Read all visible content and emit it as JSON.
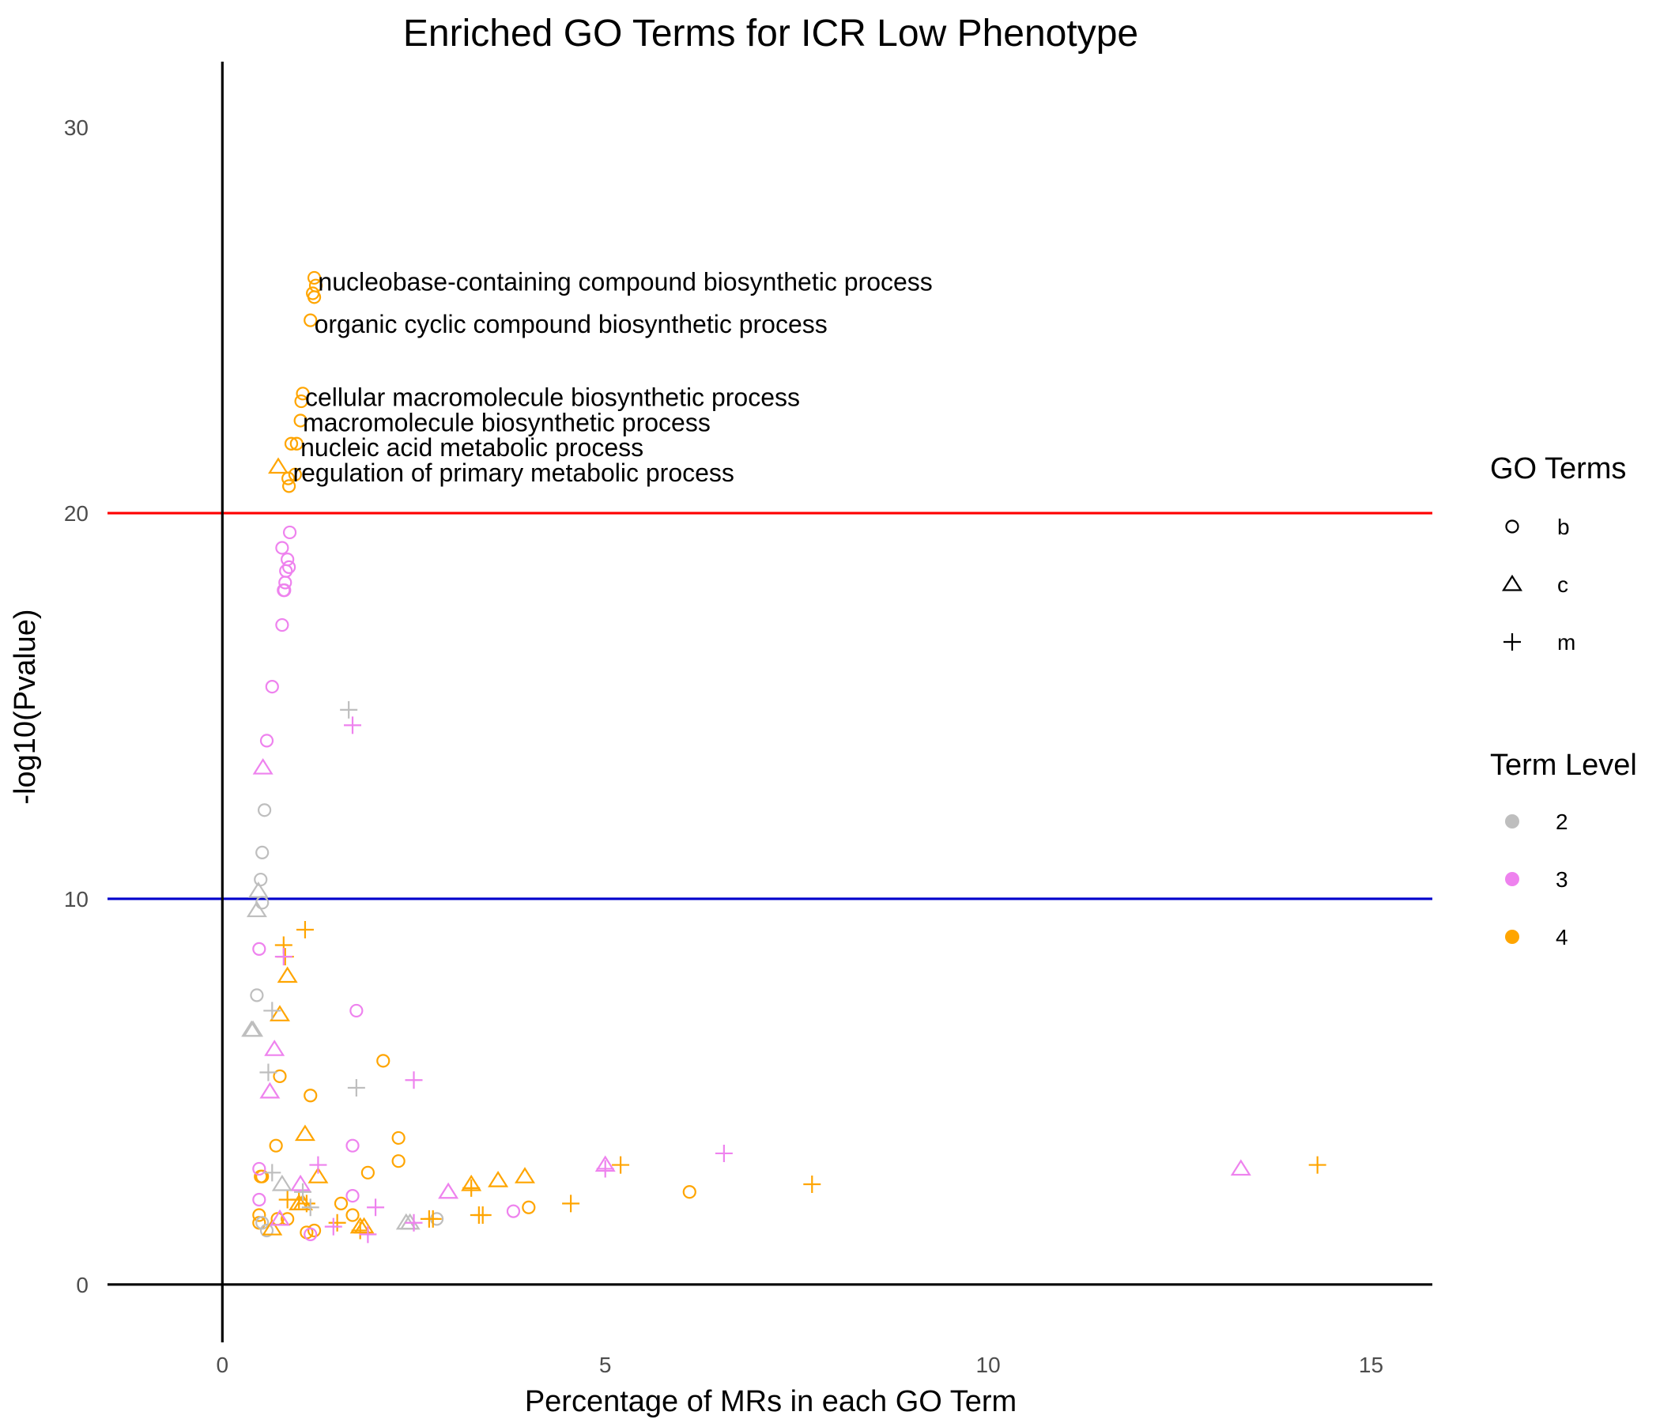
{
  "chart_data": {
    "type": "scatter",
    "title": "Enriched GO Terms for ICR Low Phenotype",
    "xlabel": "Percentage of MRs in each GO Term",
    "ylabel": "-log10(Pvalue)",
    "xlim": [
      -1.5,
      15.8
    ],
    "ylim": [
      -1.5,
      31.5
    ],
    "x_ticks": [
      0,
      5,
      10,
      15
    ],
    "y_ticks": [
      0,
      10,
      20,
      30
    ],
    "grid": false,
    "reference_lines": [
      {
        "axis": "y",
        "value": 20,
        "color": "#ff0000"
      },
      {
        "axis": "y",
        "value": 10,
        "color": "#0000cc"
      },
      {
        "axis": "y",
        "value": 0,
        "color": "#000000"
      },
      {
        "axis": "x",
        "value": 0,
        "color": "#000000"
      }
    ],
    "legend": {
      "placement": "right",
      "shape_title": "GO Terms",
      "shape_entries": [
        {
          "label": "b",
          "shape": "circle"
        },
        {
          "label": "c",
          "shape": "triangle"
        },
        {
          "label": "m",
          "shape": "plus"
        }
      ],
      "color_title": "Term Level",
      "color_entries": [
        {
          "label": "2",
          "color": "#bebebe"
        },
        {
          "label": "3",
          "color": "#ee82ee"
        },
        {
          "label": "4",
          "color": "#ffa500"
        }
      ]
    },
    "annotations": [
      {
        "text": "nucleobase-containing compound biosynthetic process",
        "x": 1.25,
        "y": 26.0
      },
      {
        "text": "organic cyclic compound biosynthetic process",
        "x": 1.2,
        "y": 24.9
      },
      {
        "text": "cellular macromolecule biosynthetic process",
        "x": 1.08,
        "y": 23.0
      },
      {
        "text": "macromolecule biosynthetic process",
        "x": 1.05,
        "y": 22.35
      },
      {
        "text": "nucleic acid metabolic process",
        "x": 1.02,
        "y": 21.7
      },
      {
        "text": "regulation of primary metabolic process",
        "x": 0.92,
        "y": 21.05
      }
    ],
    "series": [
      {
        "name": "b",
        "shape": "circle",
        "level": 4,
        "points": [
          [
            1.2,
            26.1
          ],
          [
            1.22,
            25.9
          ],
          [
            1.18,
            25.7
          ],
          [
            1.2,
            25.6
          ],
          [
            1.15,
            25.0
          ],
          [
            1.05,
            23.1
          ],
          [
            1.03,
            22.9
          ],
          [
            1.02,
            22.4
          ],
          [
            0.9,
            21.8
          ],
          [
            0.97,
            21.8
          ],
          [
            0.95,
            21.0
          ],
          [
            0.86,
            20.9
          ],
          [
            0.87,
            20.7
          ],
          [
            0.75,
            5.4
          ],
          [
            1.15,
            4.9
          ],
          [
            2.1,
            5.8
          ],
          [
            2.3,
            3.8
          ],
          [
            2.3,
            3.2
          ],
          [
            1.9,
            2.9
          ],
          [
            0.7,
            3.6
          ],
          [
            0.5,
            2.8
          ],
          [
            0.52,
            2.8
          ],
          [
            0.48,
            1.8
          ],
          [
            0.48,
            1.6
          ],
          [
            0.72,
            1.7
          ],
          [
            0.85,
            1.7
          ],
          [
            1.55,
            2.1
          ],
          [
            1.7,
            1.8
          ],
          [
            1.1,
            1.35
          ],
          [
            1.2,
            1.4
          ],
          [
            4.0,
            2.0
          ],
          [
            6.1,
            2.4
          ]
        ]
      },
      {
        "name": "b",
        "shape": "circle",
        "level": 3,
        "points": [
          [
            0.88,
            19.5
          ],
          [
            0.78,
            19.1
          ],
          [
            0.85,
            18.8
          ],
          [
            0.87,
            18.6
          ],
          [
            0.83,
            18.5
          ],
          [
            0.82,
            18.2
          ],
          [
            0.81,
            18.0
          ],
          [
            0.8,
            18.0
          ],
          [
            0.78,
            17.1
          ],
          [
            0.65,
            15.5
          ],
          [
            0.58,
            14.1
          ],
          [
            0.48,
            8.7
          ],
          [
            0.48,
            3.0
          ],
          [
            0.48,
            2.2
          ],
          [
            1.75,
            7.1
          ],
          [
            1.7,
            3.6
          ],
          [
            1.7,
            2.3
          ],
          [
            3.8,
            1.9
          ],
          [
            1.15,
            1.3
          ]
        ]
      },
      {
        "name": "b",
        "shape": "circle",
        "level": 2,
        "points": [
          [
            0.55,
            12.3
          ],
          [
            0.52,
            11.2
          ],
          [
            0.5,
            10.5
          ],
          [
            0.52,
            9.9
          ],
          [
            0.45,
            7.5
          ],
          [
            0.52,
            1.6
          ],
          [
            0.58,
            1.4
          ],
          [
            2.8,
            1.7
          ]
        ]
      },
      {
        "name": "c",
        "shape": "triangle",
        "level": 4,
        "points": [
          [
            0.73,
            21.2
          ],
          [
            0.85,
            8.0
          ],
          [
            0.75,
            7.0
          ],
          [
            1.08,
            3.9
          ],
          [
            1.25,
            2.8
          ],
          [
            3.25,
            2.6
          ],
          [
            3.6,
            2.7
          ],
          [
            3.95,
            2.8
          ],
          [
            1.0,
            2.1
          ],
          [
            1.05,
            2.1
          ],
          [
            0.65,
            1.45
          ],
          [
            1.8,
            1.5
          ],
          [
            1.85,
            1.5
          ]
        ]
      },
      {
        "name": "c",
        "shape": "triangle",
        "level": 3,
        "points": [
          [
            0.53,
            13.4
          ],
          [
            0.68,
            6.1
          ],
          [
            0.62,
            5.0
          ],
          [
            1.02,
            2.6
          ],
          [
            0.75,
            1.7
          ],
          [
            2.95,
            2.4
          ],
          [
            5.0,
            3.1
          ],
          [
            13.3,
            3.0
          ]
        ]
      },
      {
        "name": "c",
        "shape": "triangle",
        "level": 2,
        "points": [
          [
            0.47,
            10.2
          ],
          [
            0.45,
            9.7
          ],
          [
            0.38,
            6.6
          ],
          [
            0.4,
            6.6
          ],
          [
            0.78,
            2.6
          ],
          [
            2.4,
            1.6
          ],
          [
            2.45,
            1.6
          ]
        ]
      },
      {
        "name": "m",
        "shape": "plus",
        "level": 4,
        "points": [
          [
            1.08,
            9.2
          ],
          [
            0.8,
            8.8
          ],
          [
            0.82,
            8.5
          ],
          [
            0.85,
            2.2
          ],
          [
            1.0,
            2.2
          ],
          [
            1.1,
            2.1
          ],
          [
            1.5,
            1.6
          ],
          [
            1.8,
            1.4
          ],
          [
            2.7,
            1.7
          ],
          [
            2.75,
            1.7
          ],
          [
            3.25,
            2.5
          ],
          [
            3.35,
            1.8
          ],
          [
            3.4,
            1.8
          ],
          [
            4.55,
            2.1
          ],
          [
            5.2,
            3.1
          ],
          [
            7.7,
            2.6
          ],
          [
            14.3,
            3.1
          ]
        ]
      },
      {
        "name": "m",
        "shape": "plus",
        "level": 3,
        "points": [
          [
            1.7,
            14.5
          ],
          [
            0.8,
            8.5
          ],
          [
            2.5,
            5.3
          ],
          [
            1.25,
            3.1
          ],
          [
            2.0,
            2.0
          ],
          [
            5.0,
            3.0
          ],
          [
            6.55,
            3.4
          ],
          [
            1.45,
            1.5
          ],
          [
            1.9,
            1.3
          ],
          [
            2.5,
            1.6
          ]
        ]
      },
      {
        "name": "m",
        "shape": "plus",
        "level": 2,
        "points": [
          [
            1.65,
            14.9
          ],
          [
            0.65,
            7.1
          ],
          [
            0.6,
            5.5
          ],
          [
            1.75,
            5.1
          ],
          [
            0.65,
            2.9
          ],
          [
            1.05,
            2.4
          ],
          [
            1.15,
            2.0
          ]
        ]
      }
    ]
  }
}
